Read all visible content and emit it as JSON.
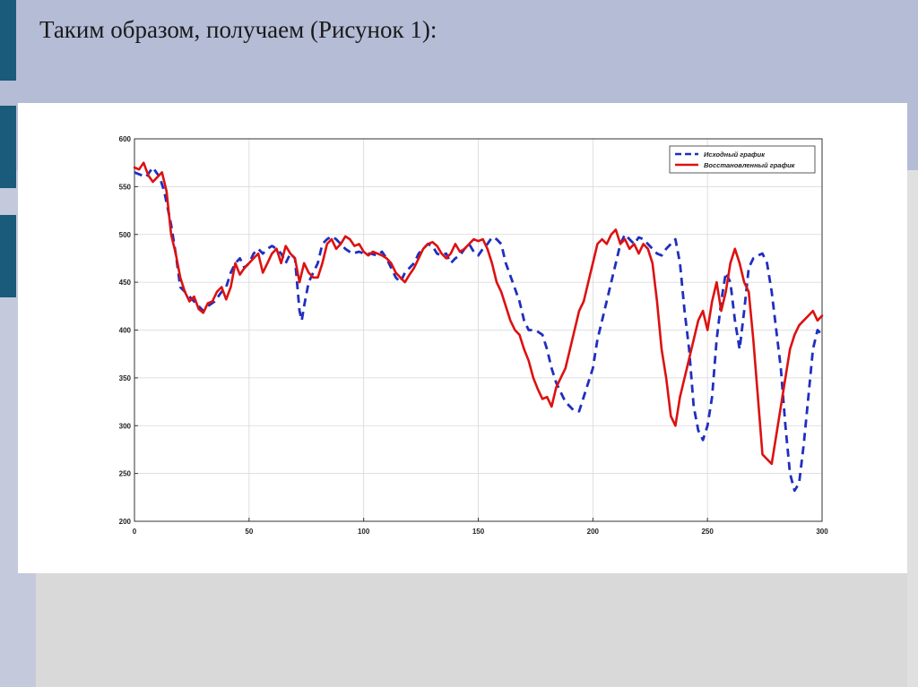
{
  "slide": {
    "title": "Таким образом, получаем (Рисунок 1):"
  },
  "chart_data": {
    "type": "line",
    "title": "",
    "xlabel": "",
    "ylabel": "",
    "xlim": [
      0,
      300
    ],
    "ylim": [
      200,
      600
    ],
    "grid": true,
    "legend_position": "top-right",
    "xticks": [
      0,
      50,
      100,
      150,
      200,
      250,
      300
    ],
    "yticks": [
      200,
      250,
      300,
      350,
      400,
      450,
      500,
      550,
      600
    ],
    "series": [
      {
        "name": "Исходный график",
        "style": "dashed",
        "color": "#1f2fbf",
        "x": [
          0,
          5,
          8,
          11,
          13,
          16,
          18,
          20,
          22,
          24,
          26,
          28,
          30,
          32,
          35,
          38,
          40,
          42,
          44,
          46,
          48,
          50,
          52,
          54,
          56,
          58,
          60,
          62,
          64,
          66,
          68,
          70,
          72,
          73,
          74,
          76,
          78,
          80,
          82,
          84,
          86,
          88,
          90,
          92,
          95,
          98,
          100,
          103,
          106,
          108,
          110,
          112,
          114,
          116,
          118,
          120,
          122,
          124,
          126,
          128,
          130,
          132,
          134,
          136,
          138,
          140,
          142,
          144,
          146,
          148,
          150,
          152,
          154,
          156,
          158,
          160,
          162,
          165,
          168,
          170,
          172,
          175,
          178,
          180,
          182,
          184,
          186,
          188,
          190,
          192,
          194,
          196,
          198,
          200,
          202,
          204,
          206,
          208,
          210,
          212,
          214,
          216,
          218,
          220,
          222,
          224,
          226,
          228,
          230,
          232,
          234,
          236,
          238,
          240,
          242,
          244,
          246,
          248,
          250,
          252,
          254,
          256,
          258,
          260,
          262,
          264,
          266,
          268,
          270,
          272,
          274,
          276,
          278,
          280,
          282,
          284,
          286,
          288,
          290,
          292,
          294,
          296,
          298,
          300
        ],
        "y": [
          565,
          560,
          570,
          560,
          545,
          510,
          480,
          445,
          440,
          435,
          430,
          425,
          420,
          425,
          430,
          440,
          445,
          460,
          470,
          475,
          465,
          470,
          480,
          485,
          480,
          485,
          488,
          485,
          480,
          470,
          480,
          475,
          420,
          410,
          425,
          450,
          460,
          470,
          490,
          495,
          498,
          495,
          490,
          485,
          480,
          482,
          480,
          480,
          478,
          482,
          475,
          465,
          455,
          450,
          460,
          465,
          470,
          480,
          485,
          490,
          488,
          480,
          478,
          480,
          470,
          475,
          478,
          485,
          490,
          482,
          478,
          485,
          490,
          497,
          495,
          490,
          470,
          450,
          430,
          410,
          400,
          400,
          395,
          380,
          360,
          345,
          335,
          325,
          320,
          315,
          315,
          330,
          345,
          360,
          390,
          410,
          430,
          450,
          470,
          490,
          500,
          495,
          490,
          497,
          495,
          490,
          485,
          480,
          478,
          485,
          490,
          495,
          470,
          420,
          380,
          320,
          295,
          285,
          300,
          330,
          390,
          430,
          460,
          450,
          410,
          380,
          420,
          465,
          475,
          478,
          480,
          470,
          440,
          400,
          360,
          300,
          250,
          232,
          240,
          280,
          330,
          380,
          400,
          395
        ]
      },
      {
        "name": "Восстановленный график",
        "style": "solid",
        "color": "#dd1111",
        "x": [
          0,
          2,
          4,
          6,
          8,
          10,
          12,
          14,
          16,
          18,
          20,
          22,
          24,
          26,
          28,
          30,
          32,
          34,
          36,
          38,
          40,
          42,
          44,
          46,
          48,
          50,
          52,
          54,
          56,
          58,
          60,
          62,
          64,
          66,
          68,
          70,
          72,
          74,
          76,
          78,
          80,
          82,
          84,
          86,
          88,
          90,
          92,
          94,
          96,
          98,
          100,
          102,
          104,
          106,
          108,
          110,
          112,
          114,
          116,
          118,
          120,
          122,
          124,
          126,
          128,
          130,
          132,
          134,
          136,
          138,
          140,
          142,
          144,
          146,
          148,
          150,
          152,
          154,
          156,
          158,
          160,
          162,
          164,
          166,
          168,
          170,
          172,
          174,
          176,
          178,
          180,
          182,
          184,
          186,
          188,
          190,
          192,
          194,
          196,
          198,
          200,
          202,
          204,
          206,
          208,
          210,
          212,
          214,
          216,
          218,
          220,
          222,
          224,
          226,
          228,
          230,
          232,
          234,
          236,
          238,
          240,
          242,
          244,
          246,
          248,
          250,
          252,
          254,
          256,
          258,
          260,
          262,
          264,
          266,
          268,
          270,
          272,
          274,
          276,
          278,
          280,
          282,
          284,
          286,
          288,
          290,
          292,
          294,
          296,
          298,
          300
        ],
        "y": [
          570,
          568,
          575,
          562,
          555,
          560,
          565,
          545,
          500,
          480,
          455,
          440,
          430,
          435,
          422,
          418,
          428,
          430,
          440,
          445,
          432,
          445,
          470,
          458,
          465,
          470,
          475,
          480,
          460,
          470,
          480,
          485,
          470,
          488,
          480,
          475,
          450,
          470,
          460,
          455,
          455,
          470,
          490,
          495,
          485,
          490,
          498,
          495,
          488,
          490,
          482,
          478,
          482,
          480,
          478,
          475,
          470,
          460,
          455,
          450,
          458,
          465,
          475,
          485,
          490,
          492,
          488,
          480,
          475,
          480,
          490,
          482,
          485,
          490,
          495,
          493,
          495,
          485,
          470,
          450,
          440,
          425,
          410,
          400,
          395,
          380,
          368,
          350,
          338,
          328,
          330,
          320,
          340,
          350,
          360,
          380,
          400,
          420,
          430,
          450,
          470,
          490,
          495,
          490,
          500,
          505,
          490,
          495,
          485,
          490,
          480,
          490,
          485,
          470,
          430,
          380,
          350,
          310,
          300,
          330,
          350,
          370,
          390,
          410,
          420,
          400,
          430,
          450,
          420,
          440,
          470,
          485,
          470,
          450,
          440,
          390,
          330,
          270,
          265,
          260,
          290,
          320,
          350,
          380,
          395,
          405,
          410,
          415,
          420,
          410,
          415
        ]
      }
    ]
  }
}
